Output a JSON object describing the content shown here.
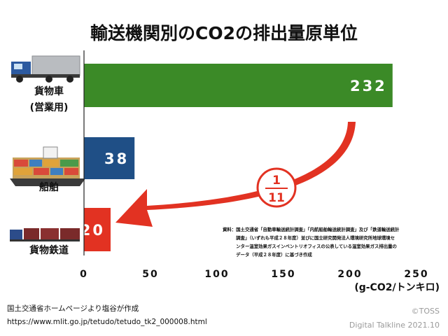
{
  "chart_data": {
    "type": "bar",
    "orientation": "horizontal",
    "title": "輸送機関別のCO2の排出量原単位",
    "categories": [
      {
        "lines": [
          "貨物車",
          "(営業用)"
        ],
        "icon": "truck-icon"
      },
      {
        "lines": [
          "船舶"
        ],
        "icon": "cargo-ship-icon"
      },
      {
        "lines": [
          "貨物鉄道"
        ],
        "icon": "freight-train-icon"
      }
    ],
    "values": [
      232,
      38,
      20
    ],
    "value_labels": [
      "232",
      "38",
      "20"
    ],
    "colors": [
      "#3b8a27",
      "#1f4f86",
      "#e23222"
    ],
    "xlim": [
      0,
      250
    ],
    "xticks": [
      "0",
      "50",
      "100",
      "150",
      "200",
      "250"
    ],
    "xlabel": "(g-CO2/トンキロ)",
    "grid": false,
    "legend": "none",
    "annotations": {
      "fraction_numerator": "1",
      "fraction_denominator": "11",
      "arrow_color": "#e23222"
    },
    "note_lines": [
      "資料：国土交通省「自動車輸送統計調査」「内航船舶輸送統計調査」及び「鉄道輸送統計",
      "　　　調査」（いずれも平成２８年度）並びに国立研究開発法人環境研究所地球環境セ",
      "　　　ンター温室効果ガスインベントリオフィスの公表している温室効果ガス排出量の",
      "　　　データ（平成２８年度）に基づき作成"
    ]
  },
  "footer": {
    "source_line1": "国土交通省ホームページより塩谷が作成",
    "source_line2": "https://www.mlit.go.jp/tetudo/tetudo_tk2_000008.html",
    "credit_line1": "©TOSS",
    "credit_line2": "Digital Talkline 2021.10"
  }
}
